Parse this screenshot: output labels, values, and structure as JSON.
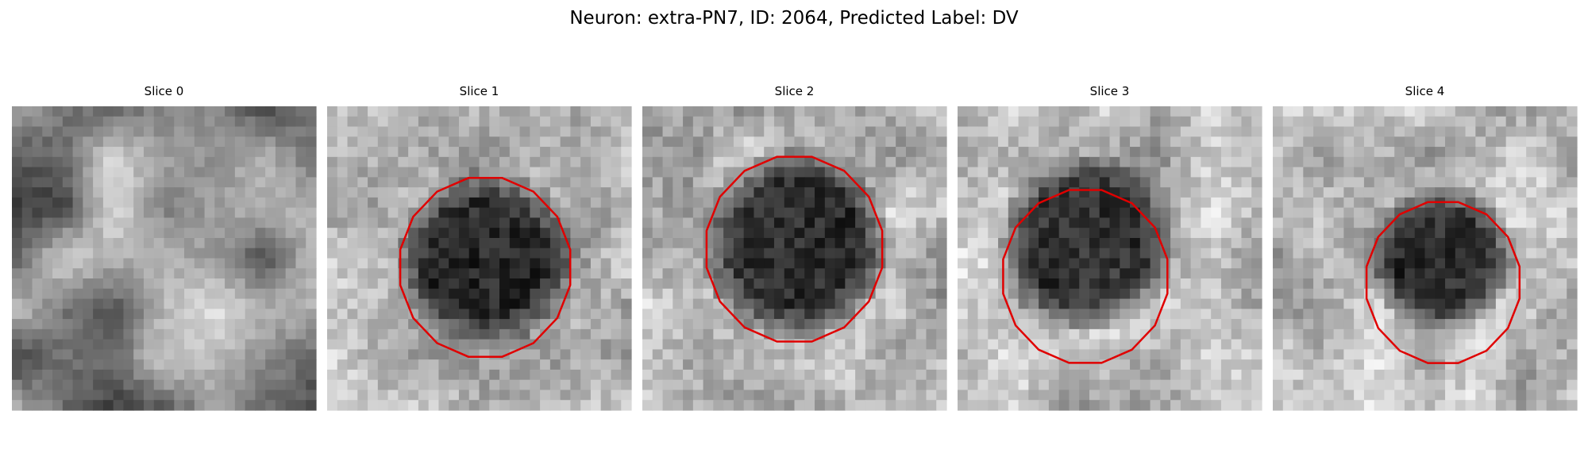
{
  "header": {
    "title": "Neuron: extra-PN7, ID: 2064, Predicted Label: DV"
  },
  "panels": [
    {
      "title": "Slice 0"
    },
    {
      "title": "Slice 1"
    },
    {
      "title": "Slice 2"
    },
    {
      "title": "Slice 3"
    },
    {
      "title": "Slice 4"
    }
  ]
}
